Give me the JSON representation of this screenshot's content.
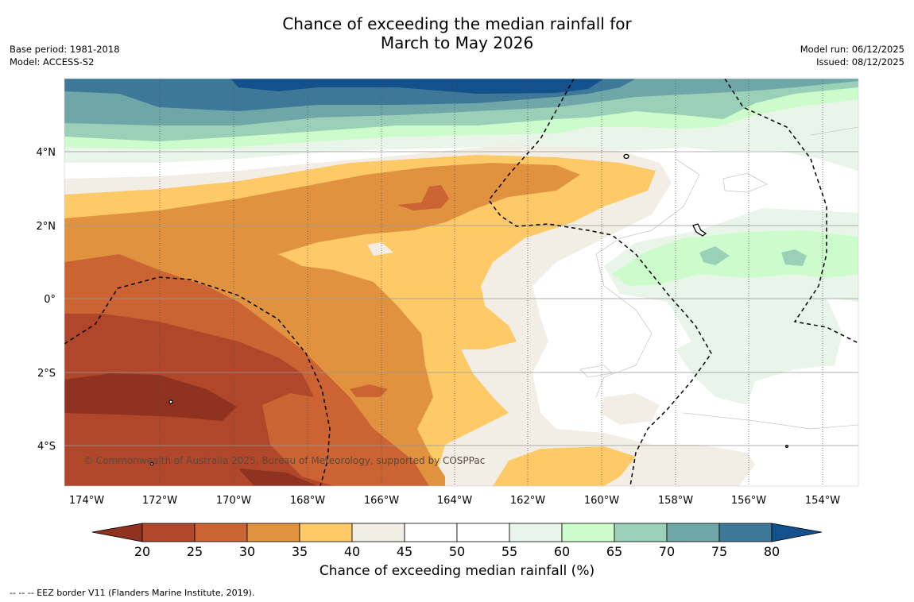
{
  "title": {
    "line1": "Chance of exceeding the median rainfall for",
    "line2": "March to May 2026"
  },
  "meta_left": {
    "base_period": "Base period: 1981-2018",
    "model": "Model: ACCESS-S2"
  },
  "meta_right": {
    "model_run": "Model run: 06/12/2025",
    "issued": "Issued: 08/12/2025"
  },
  "map": {
    "lon_labels": [
      "174°W",
      "172°W",
      "170°W",
      "168°W",
      "166°W",
      "164°W",
      "162°W",
      "160°W",
      "158°W",
      "156°W",
      "154°W"
    ],
    "lat_labels": [
      "4°N",
      "2°N",
      "0°",
      "2°S",
      "4°S"
    ],
    "copyright": "© Commonwealth of Australia 2025, Bureau of Meteorology, supported by COSPPac"
  },
  "colorbar": {
    "ticks": [
      "20",
      "25",
      "30",
      "35",
      "40",
      "45",
      "50",
      "55",
      "60",
      "65",
      "70",
      "75",
      "80"
    ],
    "colors": {
      "below_20": "#8f3220",
      "20_25": "#b0472a",
      "25_30": "#cb6332",
      "30_35": "#e0923f",
      "35_40": "#fdca67",
      "40_45": "#f2ede5",
      "45_50": "#ffffff",
      "50_55": "#ffffff",
      "55_60": "#e9f5e8",
      "60_65": "#ccfccc",
      "65_70": "#9bd0b8",
      "70_75": "#6fa6a8",
      "75_80": "#3e7898",
      "above_80": "#13508c"
    },
    "label": "Chance of exceeding median rainfall (%)"
  },
  "footnote": "-- -- -- EEZ border V11 (Flanders Marine Institute, 2019)."
}
